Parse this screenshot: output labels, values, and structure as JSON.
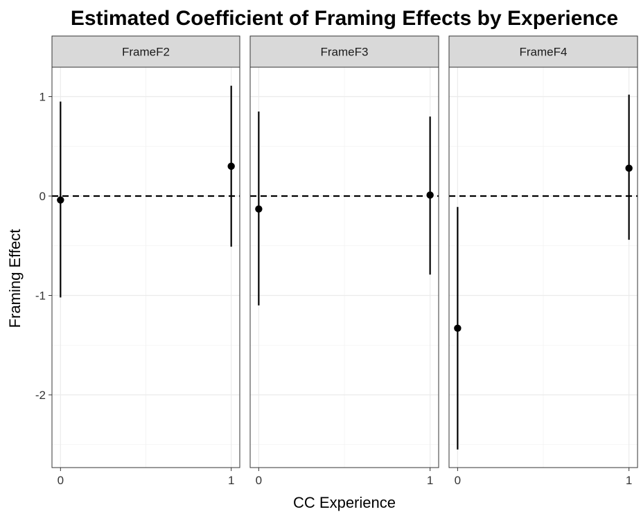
{
  "chart_data": {
    "type": "scatter",
    "subtype": "point-range facets",
    "title": "Estimated Coefficient of Framing Effects by Experience",
    "xlabel": "CC Experience",
    "ylabel": "Framing Effect",
    "x_ticks": [
      "0",
      "1"
    ],
    "y_ticks": [
      1,
      0,
      -1,
      -2
    ],
    "y_tick_labels": [
      "1",
      "0",
      "-1",
      "-2"
    ],
    "ylim": [
      -2.7,
      1.3
    ],
    "xlim": [
      -0.05,
      1.05
    ],
    "reference_line": {
      "y": 0,
      "style": "dashed"
    },
    "grid": true,
    "facets": [
      {
        "name": "FrameF2",
        "points": [
          {
            "x": 0,
            "y": -0.04,
            "lower": -1.02,
            "upper": 0.95
          },
          {
            "x": 1,
            "y": 0.3,
            "lower": -0.51,
            "upper": 1.11
          }
        ]
      },
      {
        "name": "FrameF3",
        "points": [
          {
            "x": 0,
            "y": -0.13,
            "lower": -1.1,
            "upper": 0.85
          },
          {
            "x": 1,
            "y": 0.01,
            "lower": -0.79,
            "upper": 0.8
          }
        ]
      },
      {
        "name": "FrameF4",
        "points": [
          {
            "x": 0,
            "y": -1.33,
            "lower": -2.55,
            "upper": -0.11
          },
          {
            "x": 1,
            "y": 0.28,
            "lower": -0.44,
            "upper": 1.02
          }
        ]
      }
    ]
  }
}
